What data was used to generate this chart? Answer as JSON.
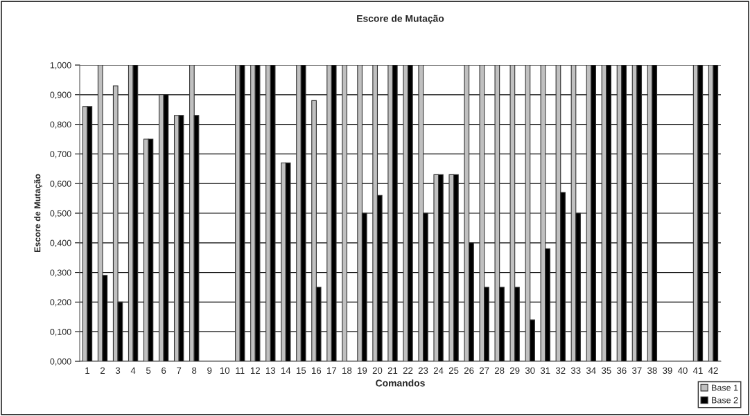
{
  "chart_data": {
    "type": "bar",
    "title": "Escore de Mutação",
    "xlabel": "Comandos",
    "ylabel": "Escore de Mutação",
    "categories": [
      "1",
      "2",
      "3",
      "4",
      "5",
      "6",
      "7",
      "8",
      "9",
      "10",
      "11",
      "12",
      "13",
      "14",
      "15",
      "16",
      "17",
      "18",
      "19",
      "20",
      "21",
      "22",
      "23",
      "24",
      "25",
      "26",
      "27",
      "28",
      "29",
      "30",
      "31",
      "32",
      "33",
      "34",
      "35",
      "36",
      "37",
      "38",
      "39",
      "40",
      "41",
      "42"
    ],
    "series": [
      {
        "name": "Base 1",
        "color": "#c0c0c0",
        "values": [
          0.86,
          1,
          0.93,
          1,
          0.75,
          0.9,
          0.83,
          1,
          0,
          0,
          1,
          1,
          1,
          0.67,
          1,
          0.88,
          1,
          1,
          1,
          1,
          1,
          1,
          1,
          0.63,
          0.63,
          1,
          1,
          1,
          1,
          1,
          1,
          1,
          1,
          1,
          1,
          1,
          1,
          1,
          0,
          0,
          1,
          1
        ]
      },
      {
        "name": "Base 2",
        "color": "#000000",
        "values": [
          0.86,
          0.29,
          0.2,
          1,
          0.75,
          0.9,
          0.83,
          0.83,
          0,
          0,
          1,
          1,
          1,
          0.67,
          1,
          0.25,
          1,
          0,
          0.5,
          0.56,
          1,
          1,
          0.5,
          0.63,
          0.63,
          0.4,
          0.25,
          0.25,
          0.25,
          0.14,
          0.38,
          0.57,
          0.5,
          1,
          1,
          1,
          1,
          1,
          0,
          0,
          1,
          1
        ]
      }
    ],
    "ylim": [
      0,
      1
    ],
    "yticks": [
      {
        "value": 0,
        "label": "0,000"
      },
      {
        "value": 0.1,
        "label": "0,100"
      },
      {
        "value": 0.2,
        "label": "0,200"
      },
      {
        "value": 0.3,
        "label": "0,300"
      },
      {
        "value": 0.4,
        "label": "0,400"
      },
      {
        "value": 0.5,
        "label": "0,500"
      },
      {
        "value": 0.6,
        "label": "0,600"
      },
      {
        "value": 0.7,
        "label": "0,700"
      },
      {
        "value": 0.8,
        "label": "0,800"
      },
      {
        "value": 0.9,
        "label": "0,900"
      },
      {
        "value": 1,
        "label": "1,000"
      }
    ],
    "grid": "y",
    "legend": "bottom right"
  }
}
